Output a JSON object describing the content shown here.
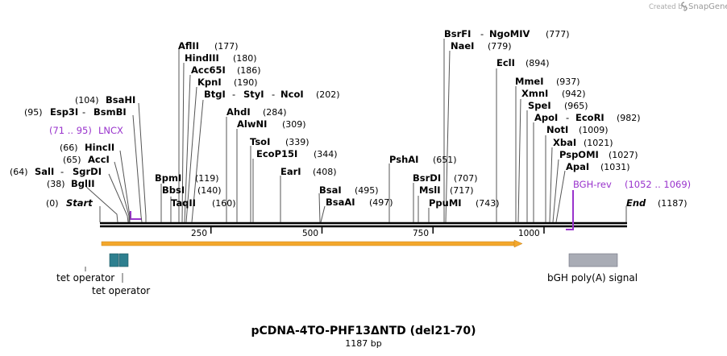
{
  "branding": {
    "created_by": "Created by",
    "product": "SnapGene"
  },
  "title": "pCDNA-4TO-PHF13ΔNTD (del21-70)",
  "subtitle": "1187 bp",
  "sequence_length": 1187,
  "axis_ticks": [
    "250",
    "500",
    "750",
    "1000"
  ],
  "axis_tick_values": [
    250,
    500,
    750,
    1000
  ],
  "start_label": {
    "name": "Start",
    "pos": "(0)"
  },
  "end_label": {
    "name": "End",
    "pos": "(1187)"
  },
  "sites": [
    {
      "id": "bglii",
      "names": [
        "BglII"
      ],
      "pos": "(38)",
      "cut": 38
    },
    {
      "id": "sali",
      "names": [
        "SalI",
        "SgrDI"
      ],
      "pos": "(64)",
      "cut": 64
    },
    {
      "id": "acci",
      "names": [
        "AccI"
      ],
      "pos": "(65)",
      "cut": 65
    },
    {
      "id": "hincii",
      "names": [
        "HincII"
      ],
      "pos": "(66)",
      "cut": 66
    },
    {
      "id": "esp3i",
      "names": [
        "Esp3I",
        "BsmBI"
      ],
      "pos": "(95)",
      "cut": 95
    },
    {
      "id": "bsahi",
      "names": [
        "BsaHI"
      ],
      "pos": "(104)",
      "cut": 104
    },
    {
      "id": "bpmi",
      "names": [
        "BpmI"
      ],
      "pos": "(119)",
      "cut": 119
    },
    {
      "id": "bbsi",
      "names": [
        "BbsI"
      ],
      "pos": "(140)",
      "cut": 140
    },
    {
      "id": "taqii",
      "names": [
        "TaqII"
      ],
      "pos": "(160)",
      "cut": 160
    },
    {
      "id": "aflii",
      "names": [
        "AflII"
      ],
      "pos": "(177)",
      "cut": 177
    },
    {
      "id": "hindiii",
      "names": [
        "HindIII"
      ],
      "pos": "(180)",
      "cut": 180
    },
    {
      "id": "acc65i",
      "names": [
        "Acc65I"
      ],
      "pos": "(186)",
      "cut": 186
    },
    {
      "id": "kpni",
      "names": [
        "KpnI"
      ],
      "pos": "(190)",
      "cut": 190
    },
    {
      "id": "btgi",
      "names": [
        "BtgI",
        "StyI",
        "NcoI"
      ],
      "pos": "(202)",
      "cut": 202
    },
    {
      "id": "ahdi",
      "names": [
        "AhdI"
      ],
      "pos": "(284)",
      "cut": 284
    },
    {
      "id": "alwni",
      "names": [
        "AlwNI"
      ],
      "pos": "(309)",
      "cut": 309
    },
    {
      "id": "tsoi",
      "names": [
        "TsoI"
      ],
      "pos": "(339)",
      "cut": 339
    },
    {
      "id": "ecop15i",
      "names": [
        "EcoP15I"
      ],
      "pos": "(344)",
      "cut": 344
    },
    {
      "id": "eari",
      "names": [
        "EarI"
      ],
      "pos": "(408)",
      "cut": 408
    },
    {
      "id": "bsai",
      "names": [
        "BsaI"
      ],
      "pos": "(495)",
      "cut": 495
    },
    {
      "id": "bsaai",
      "names": [
        "BsaAI"
      ],
      "pos": "(497)",
      "cut": 497
    },
    {
      "id": "pshai",
      "names": [
        "PshAI"
      ],
      "pos": "(651)",
      "cut": 651
    },
    {
      "id": "bsrdi",
      "names": [
        "BsrDI"
      ],
      "pos": "(707)",
      "cut": 707
    },
    {
      "id": "msli",
      "names": [
        "MslI"
      ],
      "pos": "(717)",
      "cut": 717
    },
    {
      "id": "ppumi",
      "names": [
        "PpuMI"
      ],
      "pos": "(743)",
      "cut": 743
    },
    {
      "id": "bsrfi",
      "names": [
        "BsrFI",
        "NgoMIV"
      ],
      "pos": "(777)",
      "cut": 777
    },
    {
      "id": "naei",
      "names": [
        "NaeI"
      ],
      "pos": "(779)",
      "cut": 779
    },
    {
      "id": "ecli",
      "names": [
        "EclI"
      ],
      "pos": "(894)",
      "cut": 894
    },
    {
      "id": "mmei",
      "names": [
        "MmeI"
      ],
      "pos": "(937)",
      "cut": 937
    },
    {
      "id": "xmni",
      "names": [
        "XmnI"
      ],
      "pos": "(942)",
      "cut": 942
    },
    {
      "id": "spei",
      "names": [
        "SpeI"
      ],
      "pos": "(965)",
      "cut": 965
    },
    {
      "id": "apoi",
      "names": [
        "ApoI",
        "EcoRI"
      ],
      "pos": "(982)",
      "cut": 982
    },
    {
      "id": "noti",
      "names": [
        "NotI"
      ],
      "pos": "(1009)",
      "cut": 1009
    },
    {
      "id": "xbai",
      "names": [
        "XbaI"
      ],
      "pos": "(1021)",
      "cut": 1021
    },
    {
      "id": "pspomi",
      "names": [
        "PspOMI"
      ],
      "pos": "(1027)",
      "cut": 1027
    },
    {
      "id": "apai",
      "names": [
        "ApaI"
      ],
      "pos": "(1031)",
      "cut": 1031
    }
  ],
  "primers": [
    {
      "id": "lncx",
      "name": "LNCX",
      "range": "(71 .. 95)",
      "start": 71,
      "end": 95,
      "color": "#9933cc"
    },
    {
      "id": "bgh-rev",
      "name": "BGH-rev",
      "range": "(1052 .. 1069)",
      "start": 1052,
      "end": 1069,
      "color": "#9933cc"
    }
  ],
  "features": [
    {
      "id": "tet-operator-1",
      "label": "tet operator",
      "start": 20,
      "end": 40,
      "color": "#2e7f8f"
    },
    {
      "id": "tet-operator-2",
      "label": "tet operator",
      "start": 43,
      "end": 63,
      "color": "#2e7f8f"
    },
    {
      "id": "bgh-polya",
      "label": "bGH poly(A) signal",
      "start": 1060,
      "end": 1171,
      "color": "#a9acb5"
    }
  ],
  "orf": {
    "start": 0,
    "end": 950,
    "color": "#f3a72c"
  }
}
